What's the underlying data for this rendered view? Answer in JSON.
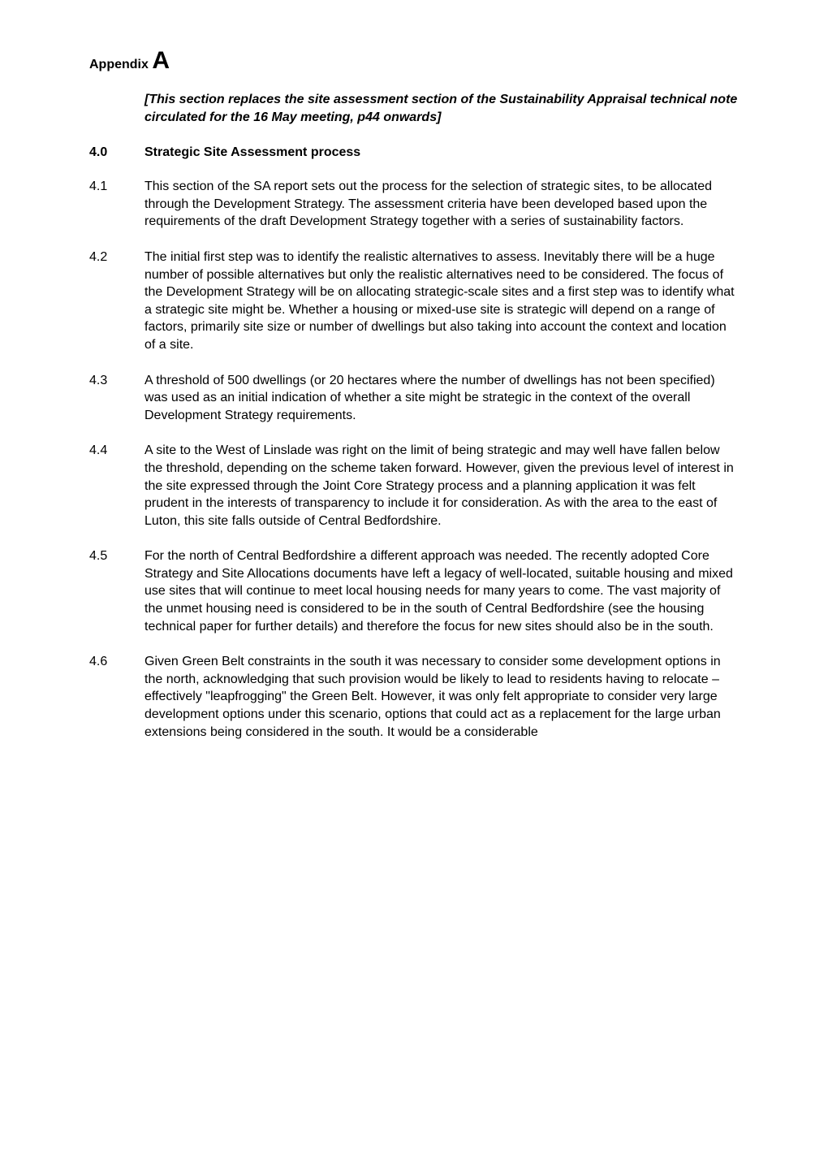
{
  "appendix": {
    "prefix": "Appendix ",
    "letter": "A"
  },
  "intro": "[This section replaces the site assessment section of the Sustainability Appraisal technical note circulated for the 16 May meeting, p44 onwards]",
  "heading": {
    "num": "4.0",
    "text": "Strategic Site Assessment process"
  },
  "paras": [
    {
      "num": "4.1",
      "text": "This section of the SA report sets out the process for the selection of strategic sites, to be allocated through the Development Strategy.  The assessment criteria have been developed based upon the requirements of the draft Development Strategy together with a series of sustainability factors."
    },
    {
      "num": "4.2",
      "text": "The initial first step was to identify the realistic alternatives to assess. Inevitably there will be a huge number of possible alternatives but only the realistic alternatives need to be considered. The focus of the Development Strategy will be on allocating strategic-scale sites and a first step was to identify what a strategic site might be. Whether a housing or mixed-use site is strategic will depend on a range of factors, primarily site size or number of dwellings but also taking into account the context and location of a site."
    },
    {
      "num": "4.3",
      "text": "A threshold of 500 dwellings (or 20 hectares where the number of dwellings has not been specified) was used as an initial indication of whether a site might be strategic in the context of the overall Development Strategy requirements."
    },
    {
      "num": "4.4",
      "text": "A site to the West of Linslade was right on the limit of being strategic and may well have fallen below the threshold, depending on the scheme taken forward. However, given the previous level of interest in the site expressed through the Joint Core Strategy process and a planning application it was felt prudent in the interests of transparency to include it for consideration. As with the area to the east of Luton, this site falls outside of Central Bedfordshire."
    },
    {
      "num": "4.5",
      "text": "For the north of Central Bedfordshire a different approach was needed. The recently adopted Core Strategy and Site Allocations documents have left a legacy of well-located, suitable housing and mixed use sites that will continue to meet local housing needs for many years to come. The vast majority of the unmet housing need is considered to be in the south of Central Bedfordshire (see the housing technical paper for further details) and therefore the focus for new sites should also be in the south."
    },
    {
      "num": "4.6",
      "text": "Given Green Belt constraints in the south it was necessary to consider some development options in the north, acknowledging that such provision would be likely to lead to residents having to relocate – effectively \"leapfrogging\" the Green Belt. However, it was only felt appropriate to consider very large development options under this scenario, options that could act as a replacement for the large urban extensions being considered in the south. It would be a considerable"
    }
  ]
}
